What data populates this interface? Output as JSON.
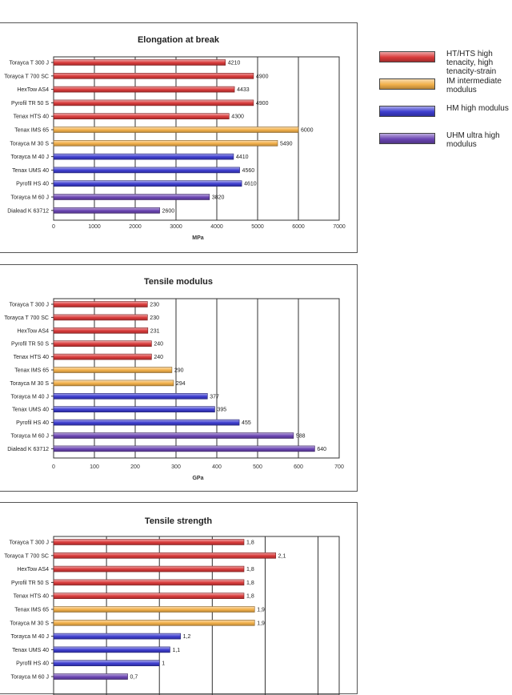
{
  "legend": {
    "items": [
      {
        "label": "HT/HTS high tenacity, high tenacity-strain",
        "color": "#d93a3a"
      },
      {
        "label": "IM intermediate modulus",
        "color": "#f2b04a"
      },
      {
        "label": "HM high modulus",
        "color": "#3d3dcf"
      },
      {
        "label": "UHM ultra high modulus",
        "color": "#6b45b3"
      }
    ]
  },
  "chart_data": [
    {
      "type": "bar",
      "title": "Elongation at break",
      "xlabel": "MPa",
      "xlim": [
        0,
        7000
      ],
      "xticks": [
        0,
        1000,
        2000,
        3000,
        4000,
        5000,
        6000,
        7000
      ],
      "xtick_labels": [
        "0",
        "1000",
        "2000",
        "3000",
        "4000",
        "5000",
        "6000",
        "7000"
      ],
      "categories": [
        "Torayca T 300 J",
        "Torayca T 700 SC",
        "HexTow AS4",
        "Pyrofil TR 50 S",
        "Tenax HTS 40",
        "Tenax IMS 65",
        "Torayca M 30 S",
        "Torayca M 40 J",
        "Tenax UMS 40",
        "Pyrofil HS 40",
        "Torayca M 60 J",
        "Dialead K 63712"
      ],
      "values": [
        4210,
        4900,
        4433,
        4900,
        4300,
        6000,
        5490,
        4410,
        4560,
        4610,
        3820,
        2600
      ],
      "value_labels": [
        "4210",
        "4900",
        "4433",
        "4900",
        "4300",
        "6000",
        "5490",
        "4410",
        "4560",
        "4610",
        "3820",
        "2600"
      ],
      "groups": [
        0,
        0,
        0,
        0,
        0,
        1,
        1,
        2,
        2,
        2,
        3,
        3
      ]
    },
    {
      "type": "bar",
      "title": "Tensile modulus",
      "xlabel": "GPa",
      "xlim": [
        0,
        700
      ],
      "xticks": [
        0,
        100,
        200,
        300,
        400,
        500,
        600,
        700
      ],
      "xtick_labels": [
        "0",
        "100",
        "200",
        "300",
        "400",
        "500",
        "600",
        "700"
      ],
      "categories": [
        "Torayca T 300 J",
        "Torayca T 700 SC",
        "HexTow AS4",
        "Pyrofil TR 50 S",
        "Tenax HTS 40",
        "Tenax IMS 65",
        "Torayca M 30 S",
        "Torayca M 40 J",
        "Tenax UMS 40",
        "Pyrofil HS 40",
        "Torayca M 60 J",
        "Dialead K 63712"
      ],
      "values": [
        230,
        230,
        231,
        240,
        240,
        290,
        294,
        377,
        395,
        455,
        588,
        640
      ],
      "value_labels": [
        "230",
        "230",
        "231",
        "240",
        "240",
        "290",
        "294",
        "377",
        "395",
        "455",
        "588",
        "640"
      ],
      "groups": [
        0,
        0,
        0,
        0,
        0,
        1,
        1,
        2,
        2,
        2,
        3,
        3
      ]
    },
    {
      "type": "bar",
      "title": "Tensile strength",
      "xlim": [
        0,
        2.7
      ],
      "categories": [
        "Torayca T 300 J",
        "Torayca T 700 SC",
        "HexTow AS4",
        "Pyrofil TR 50 S",
        "Tenax HTS 40",
        "Tenax IMS 65",
        "Torayca M 30 S",
        "Torayca M 40 J",
        "Tenax UMS 40",
        "Pyrofil HS 40",
        "Torayca M 60 J"
      ],
      "values": [
        1.8,
        2.1,
        1.8,
        1.8,
        1.8,
        1.9,
        1.9,
        1.2,
        1.1,
        1.0,
        0.7
      ],
      "value_labels": [
        "1,8",
        "2,1",
        "1,8",
        "1,8",
        "1,8",
        "1,9",
        "1,9",
        "1,2",
        "1,1",
        "1",
        "0,7"
      ],
      "groups": [
        0,
        0,
        0,
        0,
        0,
        1,
        1,
        2,
        2,
        2,
        3
      ]
    }
  ]
}
